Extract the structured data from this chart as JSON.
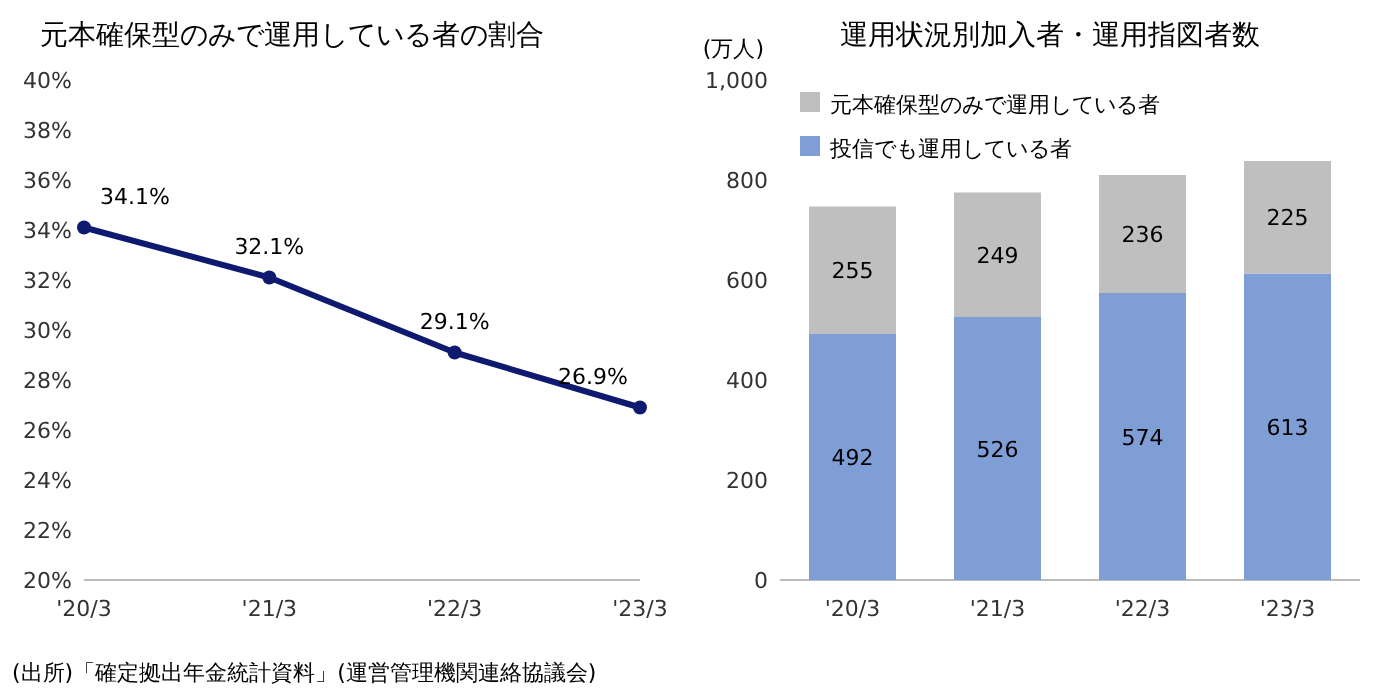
{
  "chart_data": [
    {
      "type": "line",
      "title": "元本確保型のみで運用している者の割合",
      "categories": [
        "'20/3",
        "'21/3",
        "'22/3",
        "'23/3"
      ],
      "series": [
        {
          "color": "#0d1a70",
          "values": [
            34.1,
            32.1,
            29.1,
            26.9
          ],
          "value_labels": [
            "34.1%",
            "32.1%",
            "29.1%",
            "26.9%"
          ]
        }
      ],
      "ylim": [
        20,
        40
      ],
      "yticks": [
        {
          "value": 20,
          "label": "20%"
        },
        {
          "value": 22,
          "label": "22%"
        },
        {
          "value": 24,
          "label": "24%"
        },
        {
          "value": 26,
          "label": "26%"
        },
        {
          "value": 28,
          "label": "28%"
        },
        {
          "value": 30,
          "label": "30%"
        },
        {
          "value": 32,
          "label": "32%"
        },
        {
          "value": 34,
          "label": "34%"
        },
        {
          "value": 36,
          "label": "36%"
        },
        {
          "value": 38,
          "label": "38%"
        },
        {
          "value": 40,
          "label": "40%"
        }
      ],
      "marker": "circle",
      "annotations": [
        "(出所)「確定拠出年金統計資料」(運営管理機関連絡協議会)"
      ]
    },
    {
      "type": "bar",
      "stacked": true,
      "title": "運用状況別加入者・運用指図者数",
      "ylabel": "(万人)",
      "categories": [
        "'20/3",
        "'21/3",
        "'22/3",
        "'23/3"
      ],
      "series": [
        {
          "name": "投信でも運用している者",
          "color": "#7f9ed6",
          "values": [
            492,
            526,
            574,
            613
          ]
        },
        {
          "name": "元本確保型のみで運用している者",
          "color": "#bfbfbf",
          "values": [
            255,
            249,
            236,
            225
          ]
        }
      ],
      "ylim": [
        0,
        1000
      ],
      "yticks": [
        0,
        200,
        400,
        600,
        800,
        {
          "value": 1000,
          "label": "1,000"
        }
      ],
      "data_labels": true,
      "legend": "top left"
    }
  ]
}
